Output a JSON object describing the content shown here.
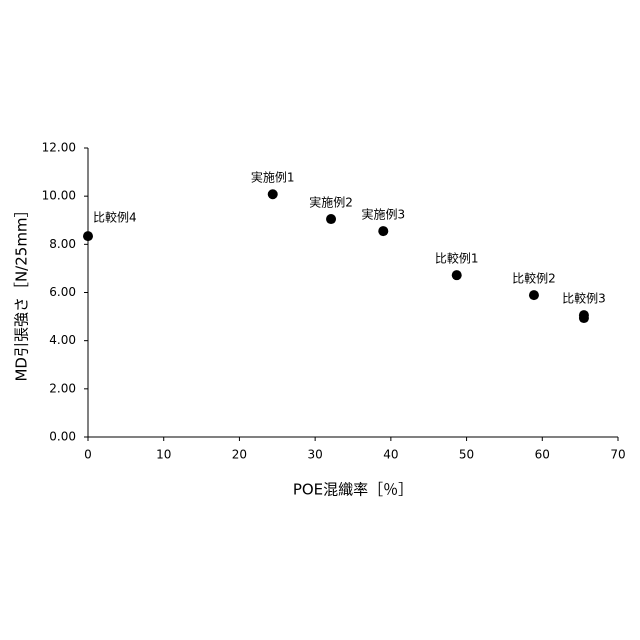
{
  "chart_data": {
    "type": "scatter",
    "x_label": "POE混織率［％］",
    "y_label": "MD引張強さ［N/25mm］",
    "x": [
      0,
      24.4,
      32.1,
      39.0,
      48.7,
      58.9,
      65.5,
      65.5
    ],
    "values": [
      8.34,
      10.08,
      9.05,
      8.55,
      6.72,
      5.89,
      5.06,
      4.94
    ],
    "labels": [
      "比較例4",
      "実施例1",
      "実施例2",
      "実施例3",
      "比較例1",
      "比較例2",
      "比較例3",
      null
    ],
    "color": "#000000",
    "xlim": [
      0,
      70
    ],
    "xticks": [
      0,
      10,
      20,
      30,
      40,
      50,
      60,
      70
    ],
    "ylim": [
      0,
      12
    ],
    "yticks": [
      {
        "value": 0,
        "label": "0.00"
      },
      {
        "value": 2,
        "label": "2.00"
      },
      {
        "value": 4,
        "label": "4.00"
      },
      {
        "value": 6,
        "label": "6.00"
      },
      {
        "value": 8,
        "label": "8.00"
      },
      {
        "value": 10,
        "label": "10.00"
      },
      {
        "value": 12,
        "label": "12.00"
      }
    ]
  }
}
